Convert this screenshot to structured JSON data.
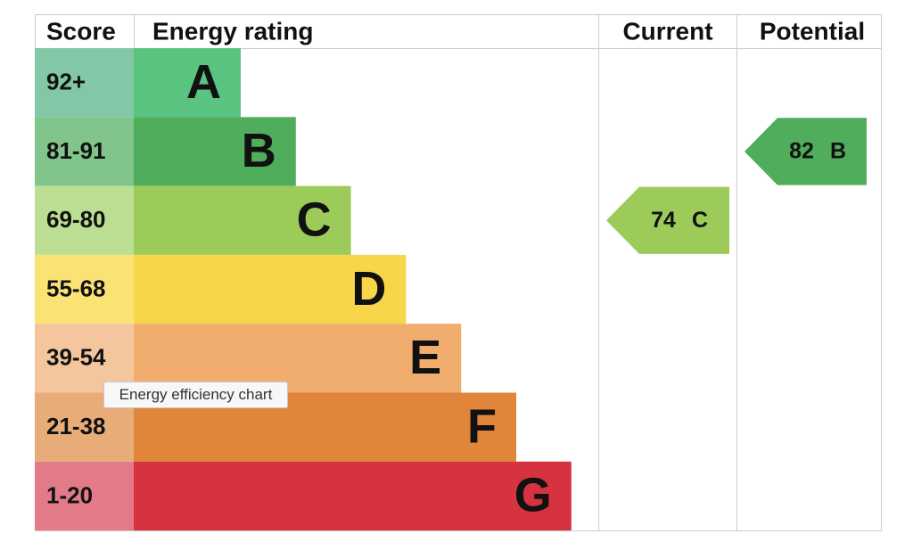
{
  "header": {
    "score": "Score",
    "rating": "Energy rating",
    "current": "Current",
    "potential": "Potential"
  },
  "bands": [
    {
      "score": "92+",
      "letter": "A",
      "color": "#59c37f",
      "score_color": "#82c8a6"
    },
    {
      "score": "81-91",
      "letter": "B",
      "color": "#4fad5b",
      "score_color": "#82c58c"
    },
    {
      "score": "69-80",
      "letter": "C",
      "color": "#9ccb5a",
      "score_color": "#bddf93"
    },
    {
      "score": "55-68",
      "letter": "D",
      "color": "#f8d64a",
      "score_color": "#fbe275"
    },
    {
      "score": "39-54",
      "letter": "E",
      "color": "#f0ad6e",
      "score_color": "#f4c69d"
    },
    {
      "score": "21-38",
      "letter": "F",
      "color": "#e0853a",
      "score_color": "#e8ac79"
    },
    {
      "score": "1-20",
      "letter": "G",
      "color": "#d63340",
      "score_color": "#e37a88"
    }
  ],
  "current": {
    "value": 74,
    "rating": "C"
  },
  "potential": {
    "value": 82,
    "rating": "B"
  },
  "tooltip": "Energy efficiency chart"
}
